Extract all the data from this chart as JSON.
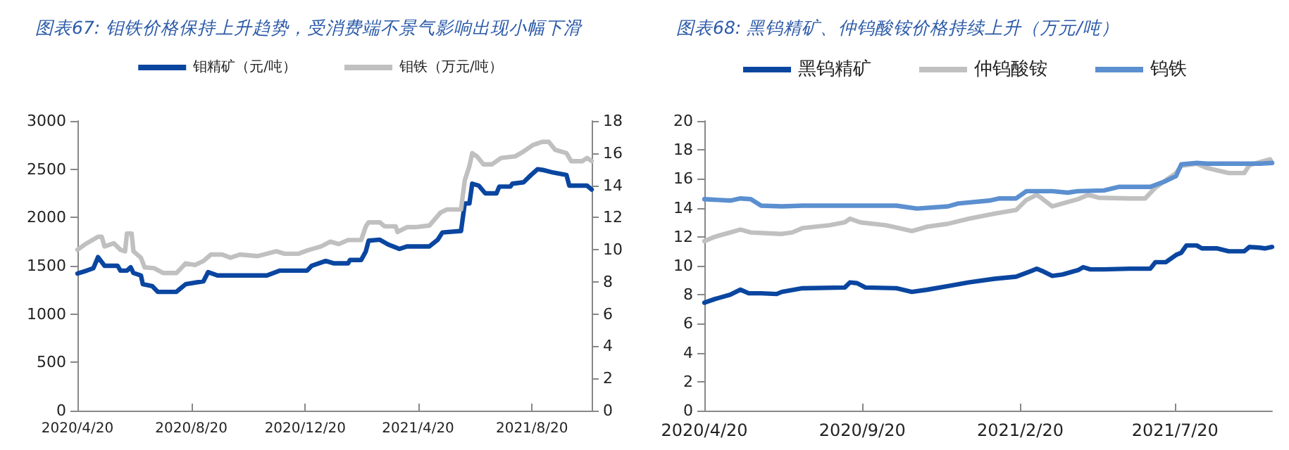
{
  "chart_data": [
    {
      "type": "line",
      "title": "图表67: 钼铁价格保持上升趋势，受消费端不景气影响出现小幅下滑",
      "legend": "top",
      "marker": "none",
      "xlim": [
        "2020-04-20",
        "2021-10-23"
      ],
      "xticks": [
        {
          "value": "2020-04-20",
          "label": "2020/4/20"
        },
        {
          "value": "2020-08-20",
          "label": "2020/8/20"
        },
        {
          "value": "2020-12-20",
          "label": "2020/12/20"
        },
        {
          "value": "2021-04-20",
          "label": "2021/4/20"
        },
        {
          "value": "2021-08-20",
          "label": "2021/8/20"
        }
      ],
      "ylim": [
        0,
        3000
      ],
      "yticks": [
        0,
        500,
        1000,
        1500,
        2000,
        2500,
        3000
      ],
      "y2lim": [
        0,
        18
      ],
      "y2ticks": [
        0,
        2,
        4,
        6,
        8,
        10,
        12,
        14,
        16,
        18
      ],
      "series": [
        {
          "name": "钼精矿（元/吨）",
          "color": "#0a46a0",
          "x": [
            "2020-04-20",
            "2020-04-30",
            "2020-05-07",
            "2020-05-12",
            "2020-05-19",
            "2020-06-02",
            "2020-06-05",
            "2020-06-12",
            "2020-06-16",
            "2020-06-19",
            "2020-06-27",
            "2020-06-29",
            "2020-07-09",
            "2020-07-15",
            "2020-08-04",
            "2020-08-09",
            "2020-08-14",
            "2020-09-02",
            "2020-09-07",
            "2020-09-17",
            "2020-10-21",
            "2020-11-09",
            "2020-11-23",
            "2020-12-22",
            "2020-12-27",
            "2021-01-11",
            "2021-01-20",
            "2021-02-04",
            "2021-02-06",
            "2021-02-18",
            "2021-02-23",
            "2021-02-26",
            "2021-03-10",
            "2021-03-19",
            "2021-03-31",
            "2021-04-08",
            "2021-05-02",
            "2021-05-11",
            "2021-05-16",
            "2021-06-05",
            "2021-06-09",
            "2021-06-14",
            "2021-06-17",
            "2021-06-24",
            "2021-07-01",
            "2021-07-13",
            "2021-07-16",
            "2021-07-28",
            "2021-07-30",
            "2021-08-11",
            "2021-08-19",
            "2021-08-26",
            "2021-09-02",
            "2021-09-12",
            "2021-09-26",
            "2021-09-29",
            "2021-10-18",
            "2021-10-23"
          ],
          "values": [
            1420,
            1450,
            1475,
            1590,
            1500,
            1500,
            1450,
            1450,
            1485,
            1425,
            1400,
            1310,
            1290,
            1230,
            1230,
            1270,
            1310,
            1340,
            1435,
            1400,
            1400,
            1400,
            1450,
            1450,
            1500,
            1550,
            1525,
            1525,
            1560,
            1560,
            1650,
            1760,
            1770,
            1720,
            1675,
            1700,
            1700,
            1770,
            1845,
            1860,
            2145,
            2145,
            2350,
            2330,
            2250,
            2250,
            2320,
            2320,
            2350,
            2365,
            2440,
            2500,
            2490,
            2465,
            2440,
            2330,
            2330,
            2290
          ]
        },
        {
          "name": "钼铁（万元/吨）",
          "color": "#c0c0c0",
          "axis": "y2",
          "x": [
            "2020-04-20",
            "2020-04-30",
            "2020-05-12",
            "2020-05-16",
            "2020-05-19",
            "2020-05-29",
            "2020-06-05",
            "2020-06-10",
            "2020-06-12",
            "2020-06-17",
            "2020-06-19",
            "2020-06-27",
            "2020-07-01",
            "2020-07-11",
            "2020-07-21",
            "2020-08-04",
            "2020-08-14",
            "2020-08-24",
            "2020-09-02",
            "2020-09-10",
            "2020-09-22",
            "2020-10-01",
            "2020-10-11",
            "2020-10-30",
            "2020-11-19",
            "2020-11-28",
            "2020-12-13",
            "2020-12-22",
            "2021-01-06",
            "2021-01-16",
            "2021-01-25",
            "2021-02-04",
            "2021-02-18",
            "2021-02-23",
            "2021-02-26",
            "2021-03-10",
            "2021-03-15",
            "2021-03-27",
            "2021-03-29",
            "2021-04-08",
            "2021-04-17",
            "2021-05-02",
            "2021-05-14",
            "2021-05-21",
            "2021-06-05",
            "2021-06-09",
            "2021-06-14",
            "2021-06-17",
            "2021-06-22",
            "2021-06-29",
            "2021-07-08",
            "2021-07-18",
            "2021-08-02",
            "2021-08-11",
            "2021-08-21",
            "2021-08-31",
            "2021-09-07",
            "2021-09-14",
            "2021-09-26",
            "2021-10-01",
            "2021-10-13",
            "2021-10-18",
            "2021-10-23"
          ],
          "values": [
            10.0,
            10.4,
            10.8,
            10.8,
            10.2,
            10.4,
            10.0,
            9.9,
            11.0,
            11.0,
            9.9,
            9.5,
            8.9,
            8.85,
            8.55,
            8.55,
            9.15,
            9.05,
            9.3,
            9.7,
            9.7,
            9.5,
            9.7,
            9.6,
            9.9,
            9.75,
            9.75,
            9.95,
            10.2,
            10.5,
            10.35,
            10.6,
            10.6,
            11.45,
            11.7,
            11.7,
            11.45,
            11.45,
            11.1,
            11.4,
            11.4,
            11.5,
            12.3,
            12.5,
            12.5,
            14.3,
            15.2,
            16.0,
            15.8,
            15.3,
            15.3,
            15.7,
            15.8,
            16.1,
            16.5,
            16.7,
            16.7,
            16.2,
            16.0,
            15.5,
            15.5,
            15.7,
            15.5
          ]
        }
      ]
    },
    {
      "type": "line",
      "title": "图表68: 黑钨精矿、仲钨酸铵价格持续上升（万元/吨）",
      "legend": "top",
      "marker": "none",
      "xlim": [
        "2020-04-20",
        "2021-10-22"
      ],
      "xticks": [
        {
          "value": "2020-04-20",
          "label": "2020/4/20"
        },
        {
          "value": "2020-09-20",
          "label": "2020/9/20"
        },
        {
          "value": "2021-02-20",
          "label": "2021/2/20"
        },
        {
          "value": "2021-07-20",
          "label": "2021/7/20"
        }
      ],
      "ylim": [
        0,
        20
      ],
      "yticks": [
        0,
        2,
        4,
        6,
        8,
        10,
        12,
        14,
        16,
        18,
        20
      ],
      "series": [
        {
          "name": "黑钨精矿",
          "color": "#0a46a0",
          "x": [
            "2020-04-20",
            "2020-04-30",
            "2020-05-15",
            "2020-05-25",
            "2020-06-02",
            "2020-06-14",
            "2020-06-29",
            "2020-07-04",
            "2020-07-24",
            "2020-09-03",
            "2020-09-08",
            "2020-09-15",
            "2020-09-23",
            "2020-10-23",
            "2020-11-07",
            "2020-11-22",
            "2020-12-12",
            "2021-01-01",
            "2021-01-26",
            "2021-02-16",
            "2021-03-03",
            "2021-03-08",
            "2021-03-13",
            "2021-03-23",
            "2021-04-02",
            "2021-04-17",
            "2021-04-22",
            "2021-04-29",
            "2021-05-12",
            "2021-06-06",
            "2021-06-26",
            "2021-07-01",
            "2021-07-11",
            "2021-07-21",
            "2021-07-26",
            "2021-07-31",
            "2021-08-10",
            "2021-08-15",
            "2021-08-30",
            "2021-09-10",
            "2021-09-25",
            "2021-09-30",
            "2021-10-10",
            "2021-10-15",
            "2021-10-22"
          ],
          "values": [
            7.45,
            7.7,
            8.0,
            8.35,
            8.1,
            8.1,
            8.05,
            8.2,
            8.45,
            8.5,
            8.85,
            8.8,
            8.5,
            8.45,
            8.2,
            8.35,
            8.6,
            8.85,
            9.1,
            9.25,
            9.65,
            9.8,
            9.65,
            9.3,
            9.4,
            9.7,
            9.9,
            9.75,
            9.75,
            9.8,
            9.8,
            10.25,
            10.25,
            10.75,
            10.9,
            11.4,
            11.4,
            11.2,
            11.2,
            11.0,
            11.0,
            11.3,
            11.25,
            11.2,
            11.3
          ]
        },
        {
          "name": "仲钨酸铵",
          "color": "#c0c0c0",
          "x": [
            "2020-04-20",
            "2020-04-30",
            "2020-05-15",
            "2020-05-25",
            "2020-06-04",
            "2020-07-04",
            "2020-07-14",
            "2020-07-24",
            "2020-08-19",
            "2020-09-03",
            "2020-09-08",
            "2020-09-18",
            "2020-10-13",
            "2020-11-07",
            "2020-11-22",
            "2020-12-12",
            "2021-01-01",
            "2021-01-26",
            "2021-02-16",
            "2021-02-26",
            "2021-03-08",
            "2021-03-13",
            "2021-03-23",
            "2021-04-02",
            "2021-04-17",
            "2021-04-27",
            "2021-05-07",
            "2021-06-06",
            "2021-06-21",
            "2021-07-01",
            "2021-07-11",
            "2021-07-21",
            "2021-07-26",
            "2021-08-10",
            "2021-08-20",
            "2021-09-10",
            "2021-09-25",
            "2021-09-30",
            "2021-10-20",
            "2021-10-22"
          ],
          "values": [
            11.7,
            12.0,
            12.3,
            12.5,
            12.3,
            12.2,
            12.3,
            12.6,
            12.8,
            13.0,
            13.25,
            13.0,
            12.8,
            12.4,
            12.7,
            12.9,
            13.25,
            13.6,
            13.85,
            14.55,
            14.9,
            14.65,
            14.1,
            14.3,
            14.6,
            14.9,
            14.7,
            14.65,
            14.65,
            15.4,
            15.9,
            16.4,
            16.9,
            17.05,
            16.75,
            16.4,
            16.4,
            16.95,
            17.35,
            17.1
          ]
        },
        {
          "name": "钨铁",
          "color": "#5b8fd0",
          "x": [
            "2020-04-20",
            "2020-05-15",
            "2020-05-25",
            "2020-06-04",
            "2020-06-14",
            "2020-07-04",
            "2020-07-24",
            "2020-09-03",
            "2020-10-23",
            "2020-11-12",
            "2020-12-12",
            "2020-12-22",
            "2021-01-21",
            "2021-01-31",
            "2021-02-16",
            "2021-02-26",
            "2021-03-23",
            "2021-04-07",
            "2021-04-17",
            "2021-05-12",
            "2021-05-27",
            "2021-06-26",
            "2021-07-11",
            "2021-07-21",
            "2021-07-26",
            "2021-08-10",
            "2021-08-20",
            "2021-10-10",
            "2021-10-22"
          ],
          "values": [
            14.6,
            14.5,
            14.65,
            14.6,
            14.15,
            14.1,
            14.15,
            14.15,
            14.15,
            13.95,
            14.1,
            14.3,
            14.5,
            14.65,
            14.65,
            15.15,
            15.15,
            15.05,
            15.15,
            15.2,
            15.45,
            15.45,
            15.85,
            16.2,
            17.0,
            17.1,
            17.05,
            17.05,
            17.1
          ]
        }
      ]
    }
  ]
}
